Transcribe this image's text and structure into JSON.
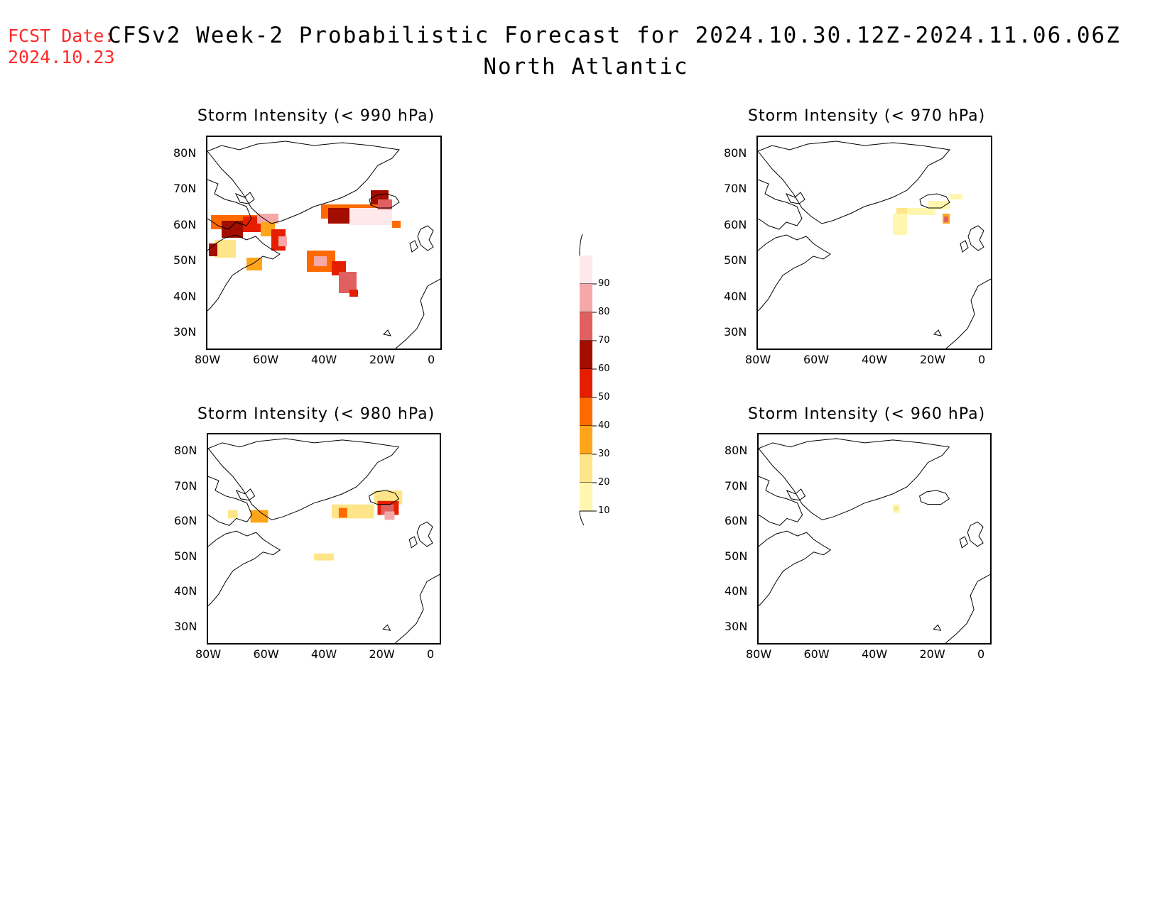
{
  "header": {
    "fcst_label": "FCST Date:",
    "fcst_date": "2024.10.23",
    "title": "CFSv2 Week-2 Probabilistic Forecast for 2024.10.30.12Z-2024.11.06.06Z",
    "region": "North Atlantic"
  },
  "panels": [
    {
      "id": "p990",
      "title": "Storm Intensity (< 990 hPa)"
    },
    {
      "id": "p970",
      "title": "Storm Intensity (< 970 hPa)"
    },
    {
      "id": "p980",
      "title": "Storm Intensity (< 980 hPa)"
    },
    {
      "id": "p960",
      "title": "Storm Intensity (< 960 hPa)"
    }
  ],
  "axes": {
    "lat_labels": [
      "80N",
      "70N",
      "60N",
      "50N",
      "40N",
      "30N"
    ],
    "lon_labels": [
      "80W",
      "60W",
      "40W",
      "20W",
      "0"
    ]
  },
  "colorbar": {
    "levels": [
      "10",
      "20",
      "30",
      "40",
      "50",
      "60",
      "70",
      "80",
      "90"
    ],
    "colors": [
      "#fff7b0",
      "#ffe58a",
      "#ffa51a",
      "#ff6a00",
      "#e61e00",
      "#a30d00",
      "#e06060",
      "#f5a8a8",
      "#ffe8ec"
    ]
  }
}
